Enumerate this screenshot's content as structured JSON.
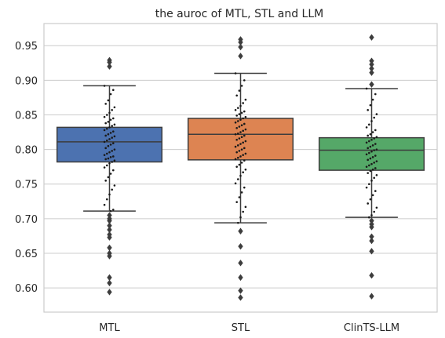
{
  "chart_data": {
    "type": "box",
    "title": "the auroc of MTL, STL and LLM",
    "xlabel": "",
    "ylabel": "",
    "ylim": [
      0.565,
      0.982
    ],
    "yticks": [
      0.6,
      0.65,
      0.7,
      0.75,
      0.8,
      0.85,
      0.9,
      0.95
    ],
    "ytick_labels": [
      "0.60",
      "0.65",
      "0.70",
      "0.75",
      "0.80",
      "0.85",
      "0.90",
      "0.95"
    ],
    "grid": "horizontal",
    "categories": [
      "MTL",
      "STL",
      "ClinTS-LLM"
    ],
    "colors": [
      "#4c72b0",
      "#dd8452",
      "#55a868"
    ],
    "boxes": [
      {
        "name": "MTL",
        "q1": 0.782,
        "median": 0.811,
        "q3": 0.832,
        "whisker_low": 0.711,
        "whisker_high": 0.892,
        "outliers": [
          0.929,
          0.926,
          0.92,
          0.705,
          0.7,
          0.697,
          0.69,
          0.684,
          0.677,
          0.673,
          0.658,
          0.65,
          0.646,
          0.615,
          0.607,
          0.594
        ]
      },
      {
        "name": "STL",
        "q1": 0.785,
        "median": 0.822,
        "q3": 0.845,
        "whisker_low": 0.694,
        "whisker_high": 0.91,
        "outliers": [
          0.959,
          0.955,
          0.948,
          0.935,
          0.682,
          0.66,
          0.636,
          0.615,
          0.596,
          0.586
        ]
      },
      {
        "name": "ClinTS-LLM",
        "q1": 0.77,
        "median": 0.799,
        "q3": 0.817,
        "whisker_low": 0.702,
        "whisker_high": 0.888,
        "outliers": [
          0.962,
          0.928,
          0.923,
          0.917,
          0.911,
          0.894,
          0.697,
          0.692,
          0.688,
          0.674,
          0.668,
          0.653,
          0.618,
          0.588
        ]
      }
    ],
    "swarm_points": [
      [
        0.892,
        0.886,
        0.88,
        0.871,
        0.866,
        0.861,
        0.857,
        0.853,
        0.85,
        0.847,
        0.845,
        0.843,
        0.84,
        0.838,
        0.836,
        0.834,
        0.832,
        0.83,
        0.828,
        0.826,
        0.824,
        0.822,
        0.82,
        0.819,
        0.817,
        0.815,
        0.813,
        0.811,
        0.809,
        0.807,
        0.805,
        0.802,
        0.8,
        0.798,
        0.796,
        0.794,
        0.792,
        0.79,
        0.789,
        0.787,
        0.786,
        0.784,
        0.782,
        0.78,
        0.777,
        0.774,
        0.77,
        0.765,
        0.76,
        0.755,
        0.748,
        0.742,
        0.735,
        0.728,
        0.72,
        0.713,
        0.711
      ],
      [
        0.91,
        0.9,
        0.892,
        0.885,
        0.878,
        0.872,
        0.867,
        0.863,
        0.86,
        0.857,
        0.855,
        0.853,
        0.851,
        0.849,
        0.847,
        0.845,
        0.843,
        0.841,
        0.839,
        0.837,
        0.835,
        0.833,
        0.831,
        0.829,
        0.827,
        0.825,
        0.823,
        0.822,
        0.82,
        0.818,
        0.816,
        0.814,
        0.812,
        0.81,
        0.808,
        0.806,
        0.804,
        0.802,
        0.8,
        0.798,
        0.796,
        0.794,
        0.792,
        0.79,
        0.788,
        0.786,
        0.784,
        0.781,
        0.778,
        0.775,
        0.771,
        0.767,
        0.762,
        0.757,
        0.751,
        0.745,
        0.738,
        0.731,
        0.724,
        0.717,
        0.71,
        0.702,
        0.694
      ],
      [
        0.888,
        0.88,
        0.872,
        0.864,
        0.857,
        0.851,
        0.846,
        0.841,
        0.836,
        0.832,
        0.828,
        0.825,
        0.822,
        0.82,
        0.818,
        0.816,
        0.814,
        0.812,
        0.81,
        0.808,
        0.806,
        0.804,
        0.802,
        0.8,
        0.799,
        0.797,
        0.795,
        0.793,
        0.791,
        0.789,
        0.787,
        0.785,
        0.783,
        0.781,
        0.779,
        0.777,
        0.775,
        0.773,
        0.771,
        0.769,
        0.766,
        0.763,
        0.759,
        0.755,
        0.75,
        0.745,
        0.74,
        0.734,
        0.728,
        0.722,
        0.716,
        0.71,
        0.705,
        0.702
      ]
    ]
  }
}
